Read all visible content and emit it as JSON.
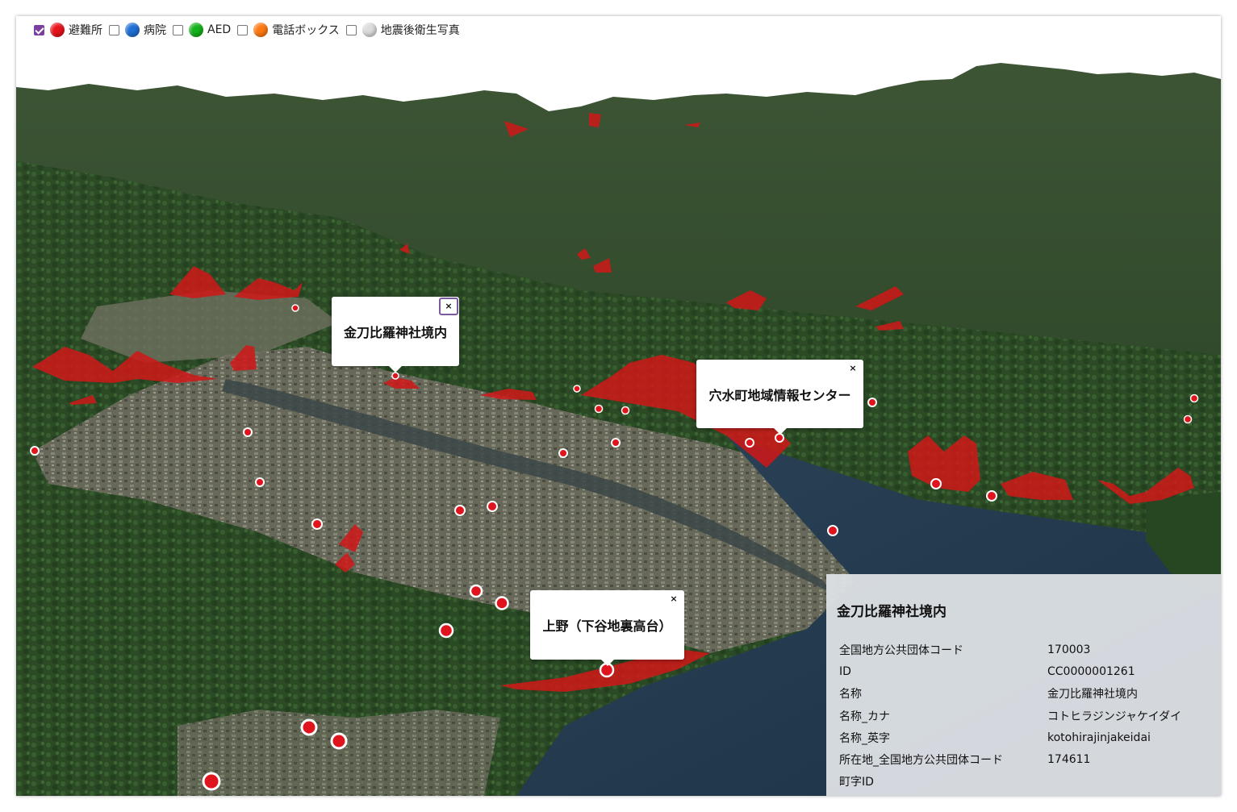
{
  "layers": [
    {
      "label": "避難所",
      "checked": true,
      "color": "#e8131c"
    },
    {
      "label": "病院",
      "checked": false,
      "color": "#1f6fd6"
    },
    {
      "label": "AED",
      "checked": false,
      "color": "#15b21b"
    },
    {
      "label": "電話ボックス",
      "checked": false,
      "color": "#ff7a12"
    },
    {
      "label": "地震後衛生写真",
      "checked": false,
      "color": "#dcdcdc"
    }
  ],
  "popups": [
    {
      "title": "金刀比羅神社境内",
      "close": "×"
    },
    {
      "title": "穴水町地域情報センター",
      "close": "×"
    },
    {
      "title": "上野（下谷地裏高台）",
      "close": "×"
    }
  ],
  "info_panel": {
    "title": "金刀比羅神社境内",
    "rows": [
      {
        "key": "全国地方公共団体コード",
        "value": "170003"
      },
      {
        "key": "ID",
        "value": "CC0000001261"
      },
      {
        "key": "名称",
        "value": "金刀比羅神社境内"
      },
      {
        "key": "名称_カナ",
        "value": "コトヒラジンジャケイダイ"
      },
      {
        "key": "名称_英字",
        "value": "kotohirajinjakeidai"
      },
      {
        "key": "所在地_全国地方公共団体コード",
        "value": "174611"
      },
      {
        "key": "町字ID",
        "value": ""
      }
    ]
  },
  "colors": {
    "marker": "#e0141c",
    "hazard_area": "#d01818",
    "sea": "#243a4e",
    "forest": "#2c4a26"
  }
}
